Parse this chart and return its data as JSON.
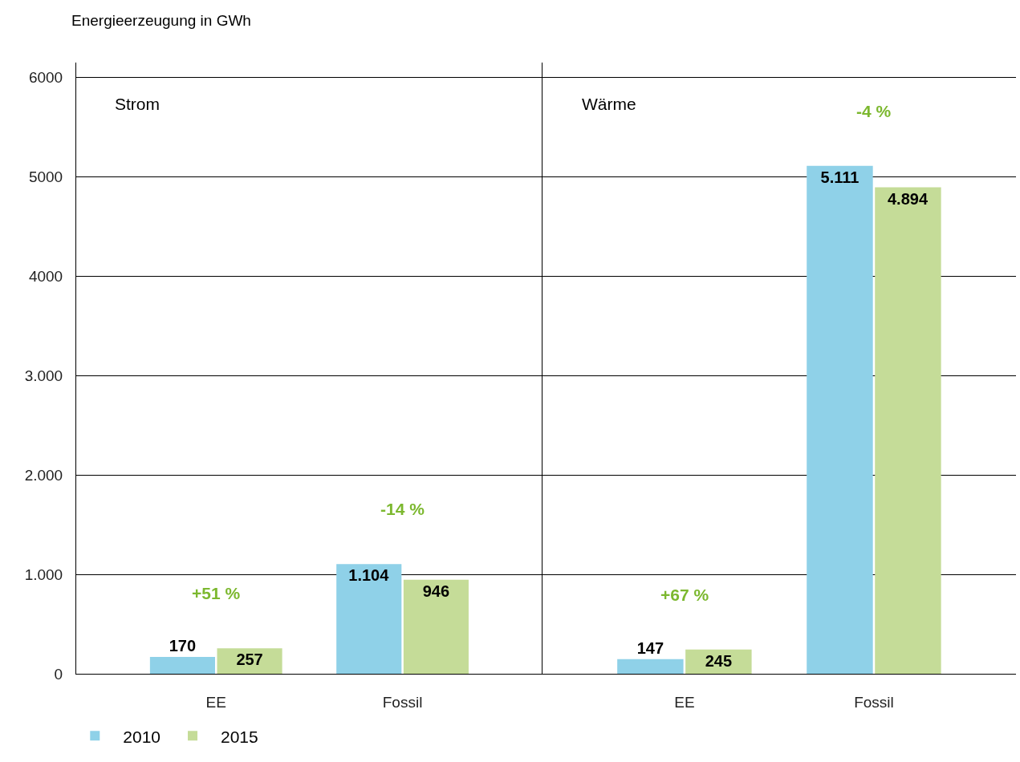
{
  "chart_data": [
    {
      "type": "bar",
      "title": "Strom",
      "ylabel": "Energieerzeugung in GWh",
      "categories": [
        "EE",
        "Fossil"
      ],
      "series": [
        {
          "name": "2010",
          "color": "#8fd1e8",
          "values": [
            170,
            1104
          ],
          "value_labels": [
            "170",
            "1.104"
          ]
        },
        {
          "name": "2015",
          "color": "#c5dc98",
          "values": [
            257,
            946
          ],
          "value_labels": [
            "257",
            "946"
          ]
        }
      ],
      "ylim": [
        0,
        6150
      ],
      "yticks": [
        0,
        {
          "value": 1000,
          "label": "1.000"
        },
        {
          "value": 2000,
          "label": "2.000"
        },
        {
          "value": 3000,
          "label": "3.000"
        },
        4000,
        5000,
        6000
      ],
      "grid": "y",
      "legend": "bottom left",
      "annotations": [
        "+51 %",
        "-14 %"
      ]
    },
    {
      "type": "bar",
      "title": "Wärme",
      "categories": [
        "EE",
        "Fossil"
      ],
      "series": [
        {
          "name": "2010",
          "color": "#8fd1e8",
          "values": [
            147,
            5111
          ],
          "value_labels": [
            "147",
            "5.111"
          ]
        },
        {
          "name": "2015",
          "color": "#c5dc98",
          "values": [
            245,
            4894
          ],
          "value_labels": [
            "245",
            "4.894"
          ]
        }
      ],
      "ylim": [
        0,
        6150
      ],
      "yticks": [
        0,
        1000,
        2000,
        3000,
        4000,
        5000,
        6000
      ],
      "grid": "y",
      "tick_labels": "x",
      "annotations": [
        "+67 %",
        "-4 %"
      ]
    }
  ]
}
